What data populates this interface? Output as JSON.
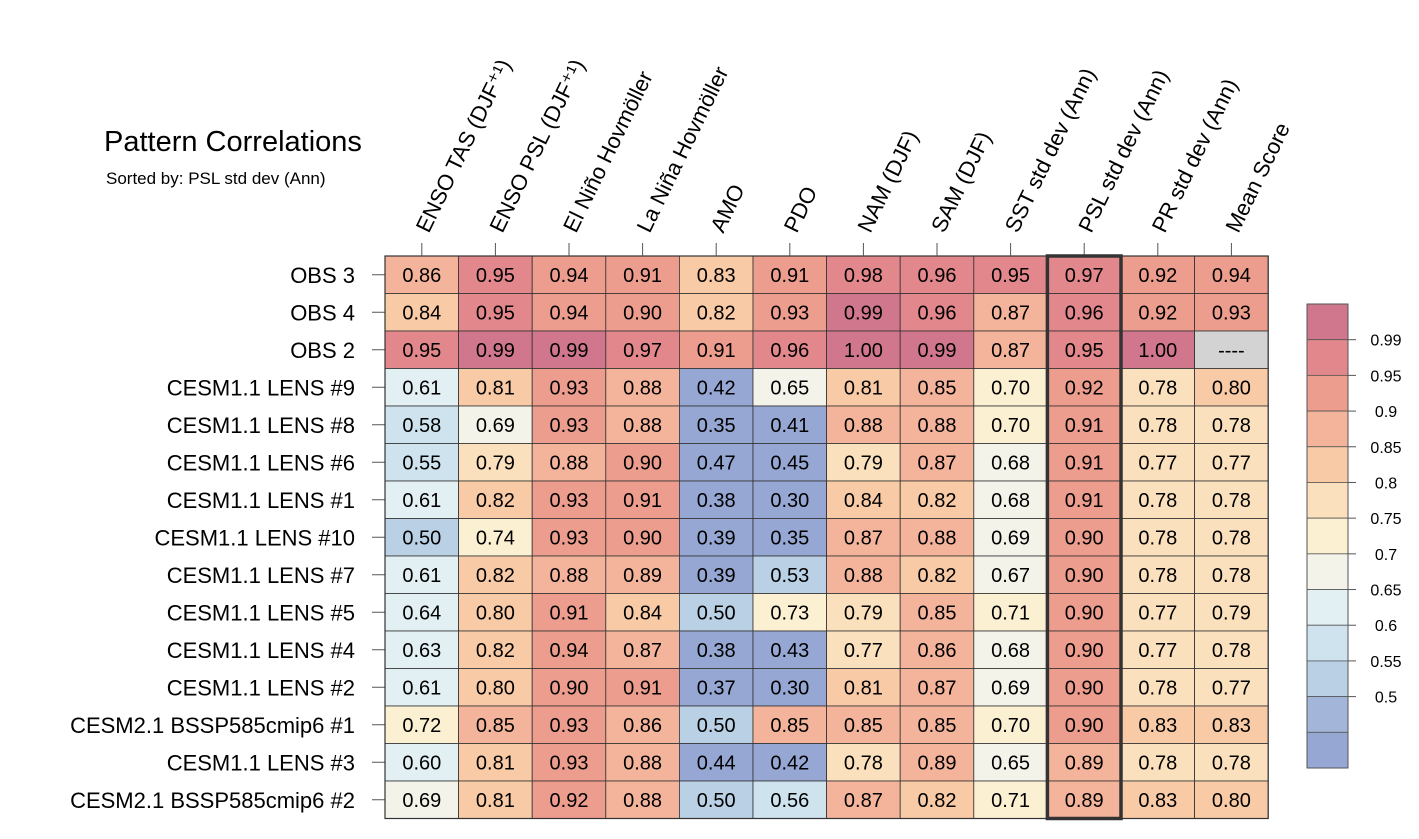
{
  "title": "Pattern Correlations",
  "subtitle": "Sorted by: PSL std dev (Ann)",
  "chart_data": {
    "type": "heatmap",
    "columns": [
      "ENSO TAS (DJF⁺¹)",
      "ENSO PSL (DJF⁺¹)",
      "El Niño Hovmöller",
      "La Niña Hovmöller",
      "AMO",
      "PDO",
      "NAM (DJF)",
      "SAM (DJF)",
      "SST std dev (Ann)",
      "PSL std dev (Ann)",
      "PR std dev (Ann)",
      "Mean Score"
    ],
    "rows": [
      {
        "label": "OBS 3",
        "values": [
          "0.86",
          "0.95",
          "0.94",
          "0.91",
          "0.83",
          "0.91",
          "0.98",
          "0.96",
          "0.95",
          "0.97",
          "0.92",
          "0.94"
        ]
      },
      {
        "label": "OBS 4",
        "values": [
          "0.84",
          "0.95",
          "0.94",
          "0.90",
          "0.82",
          "0.93",
          "0.99",
          "0.96",
          "0.87",
          "0.96",
          "0.92",
          "0.93"
        ]
      },
      {
        "label": "OBS 2",
        "values": [
          "0.95",
          "0.99",
          "0.99",
          "0.97",
          "0.91",
          "0.96",
          "1.00",
          "0.99",
          "0.87",
          "0.95",
          "1.00",
          "----"
        ]
      },
      {
        "label": "CESM1.1 LENS #9",
        "values": [
          "0.61",
          "0.81",
          "0.93",
          "0.88",
          "0.42",
          "0.65",
          "0.81",
          "0.85",
          "0.70",
          "0.92",
          "0.78",
          "0.80"
        ]
      },
      {
        "label": "CESM1.1 LENS #8",
        "values": [
          "0.58",
          "0.69",
          "0.93",
          "0.88",
          "0.35",
          "0.41",
          "0.88",
          "0.88",
          "0.70",
          "0.91",
          "0.78",
          "0.78"
        ]
      },
      {
        "label": "CESM1.1 LENS #6",
        "values": [
          "0.55",
          "0.79",
          "0.88",
          "0.90",
          "0.47",
          "0.45",
          "0.79",
          "0.87",
          "0.68",
          "0.91",
          "0.77",
          "0.77"
        ]
      },
      {
        "label": "CESM1.1 LENS #1",
        "values": [
          "0.61",
          "0.82",
          "0.93",
          "0.91",
          "0.38",
          "0.30",
          "0.84",
          "0.82",
          "0.68",
          "0.91",
          "0.78",
          "0.78"
        ]
      },
      {
        "label": "CESM1.1 LENS #10",
        "values": [
          "0.50",
          "0.74",
          "0.93",
          "0.90",
          "0.39",
          "0.35",
          "0.87",
          "0.88",
          "0.69",
          "0.90",
          "0.78",
          "0.78"
        ]
      },
      {
        "label": "CESM1.1 LENS #7",
        "values": [
          "0.61",
          "0.82",
          "0.88",
          "0.89",
          "0.39",
          "0.53",
          "0.88",
          "0.82",
          "0.67",
          "0.90",
          "0.78",
          "0.78"
        ]
      },
      {
        "label": "CESM1.1 LENS #5",
        "values": [
          "0.64",
          "0.80",
          "0.91",
          "0.84",
          "0.50",
          "0.73",
          "0.79",
          "0.85",
          "0.71",
          "0.90",
          "0.77",
          "0.79"
        ]
      },
      {
        "label": "CESM1.1 LENS #4",
        "values": [
          "0.63",
          "0.82",
          "0.94",
          "0.87",
          "0.38",
          "0.43",
          "0.77",
          "0.86",
          "0.68",
          "0.90",
          "0.77",
          "0.78"
        ]
      },
      {
        "label": "CESM1.1 LENS #2",
        "values": [
          "0.61",
          "0.80",
          "0.90",
          "0.91",
          "0.37",
          "0.30",
          "0.81",
          "0.87",
          "0.69",
          "0.90",
          "0.78",
          "0.77"
        ]
      },
      {
        "label": "CESM2.1 BSSP585cmip6 #1",
        "values": [
          "0.72",
          "0.85",
          "0.93",
          "0.86",
          "0.50",
          "0.85",
          "0.85",
          "0.85",
          "0.70",
          "0.90",
          "0.83",
          "0.83"
        ]
      },
      {
        "label": "CESM1.1 LENS #3",
        "values": [
          "0.60",
          "0.81",
          "0.93",
          "0.88",
          "0.44",
          "0.42",
          "0.78",
          "0.89",
          "0.65",
          "0.89",
          "0.78",
          "0.78"
        ]
      },
      {
        "label": "CESM2.1 BSSP585cmip6 #2",
        "values": [
          "0.69",
          "0.81",
          "0.92",
          "0.88",
          "0.50",
          "0.56",
          "0.87",
          "0.82",
          "0.71",
          "0.89",
          "0.83",
          "0.80"
        ]
      }
    ],
    "highlighted_column": "PSL std dev (Ann)",
    "legend": {
      "levels": [
        "0.99",
        "0.95",
        "0.9",
        "0.85",
        "0.8",
        "0.75",
        "0.7",
        "0.65",
        "0.6",
        "0.55",
        "0.5"
      ],
      "colors": [
        "#d0778d",
        "#e2878b",
        "#ec9d8d",
        "#f4b49b",
        "#f8cba6",
        "#fae0bd",
        "#fcf0d2",
        "#f3f3ea",
        "#e2f0f4",
        "#cee3ee",
        "#b9d0e5",
        "#a3b6d9",
        "#95a7d2"
      ],
      "placement": "right"
    },
    "missing_color": "#d3d3d3"
  }
}
